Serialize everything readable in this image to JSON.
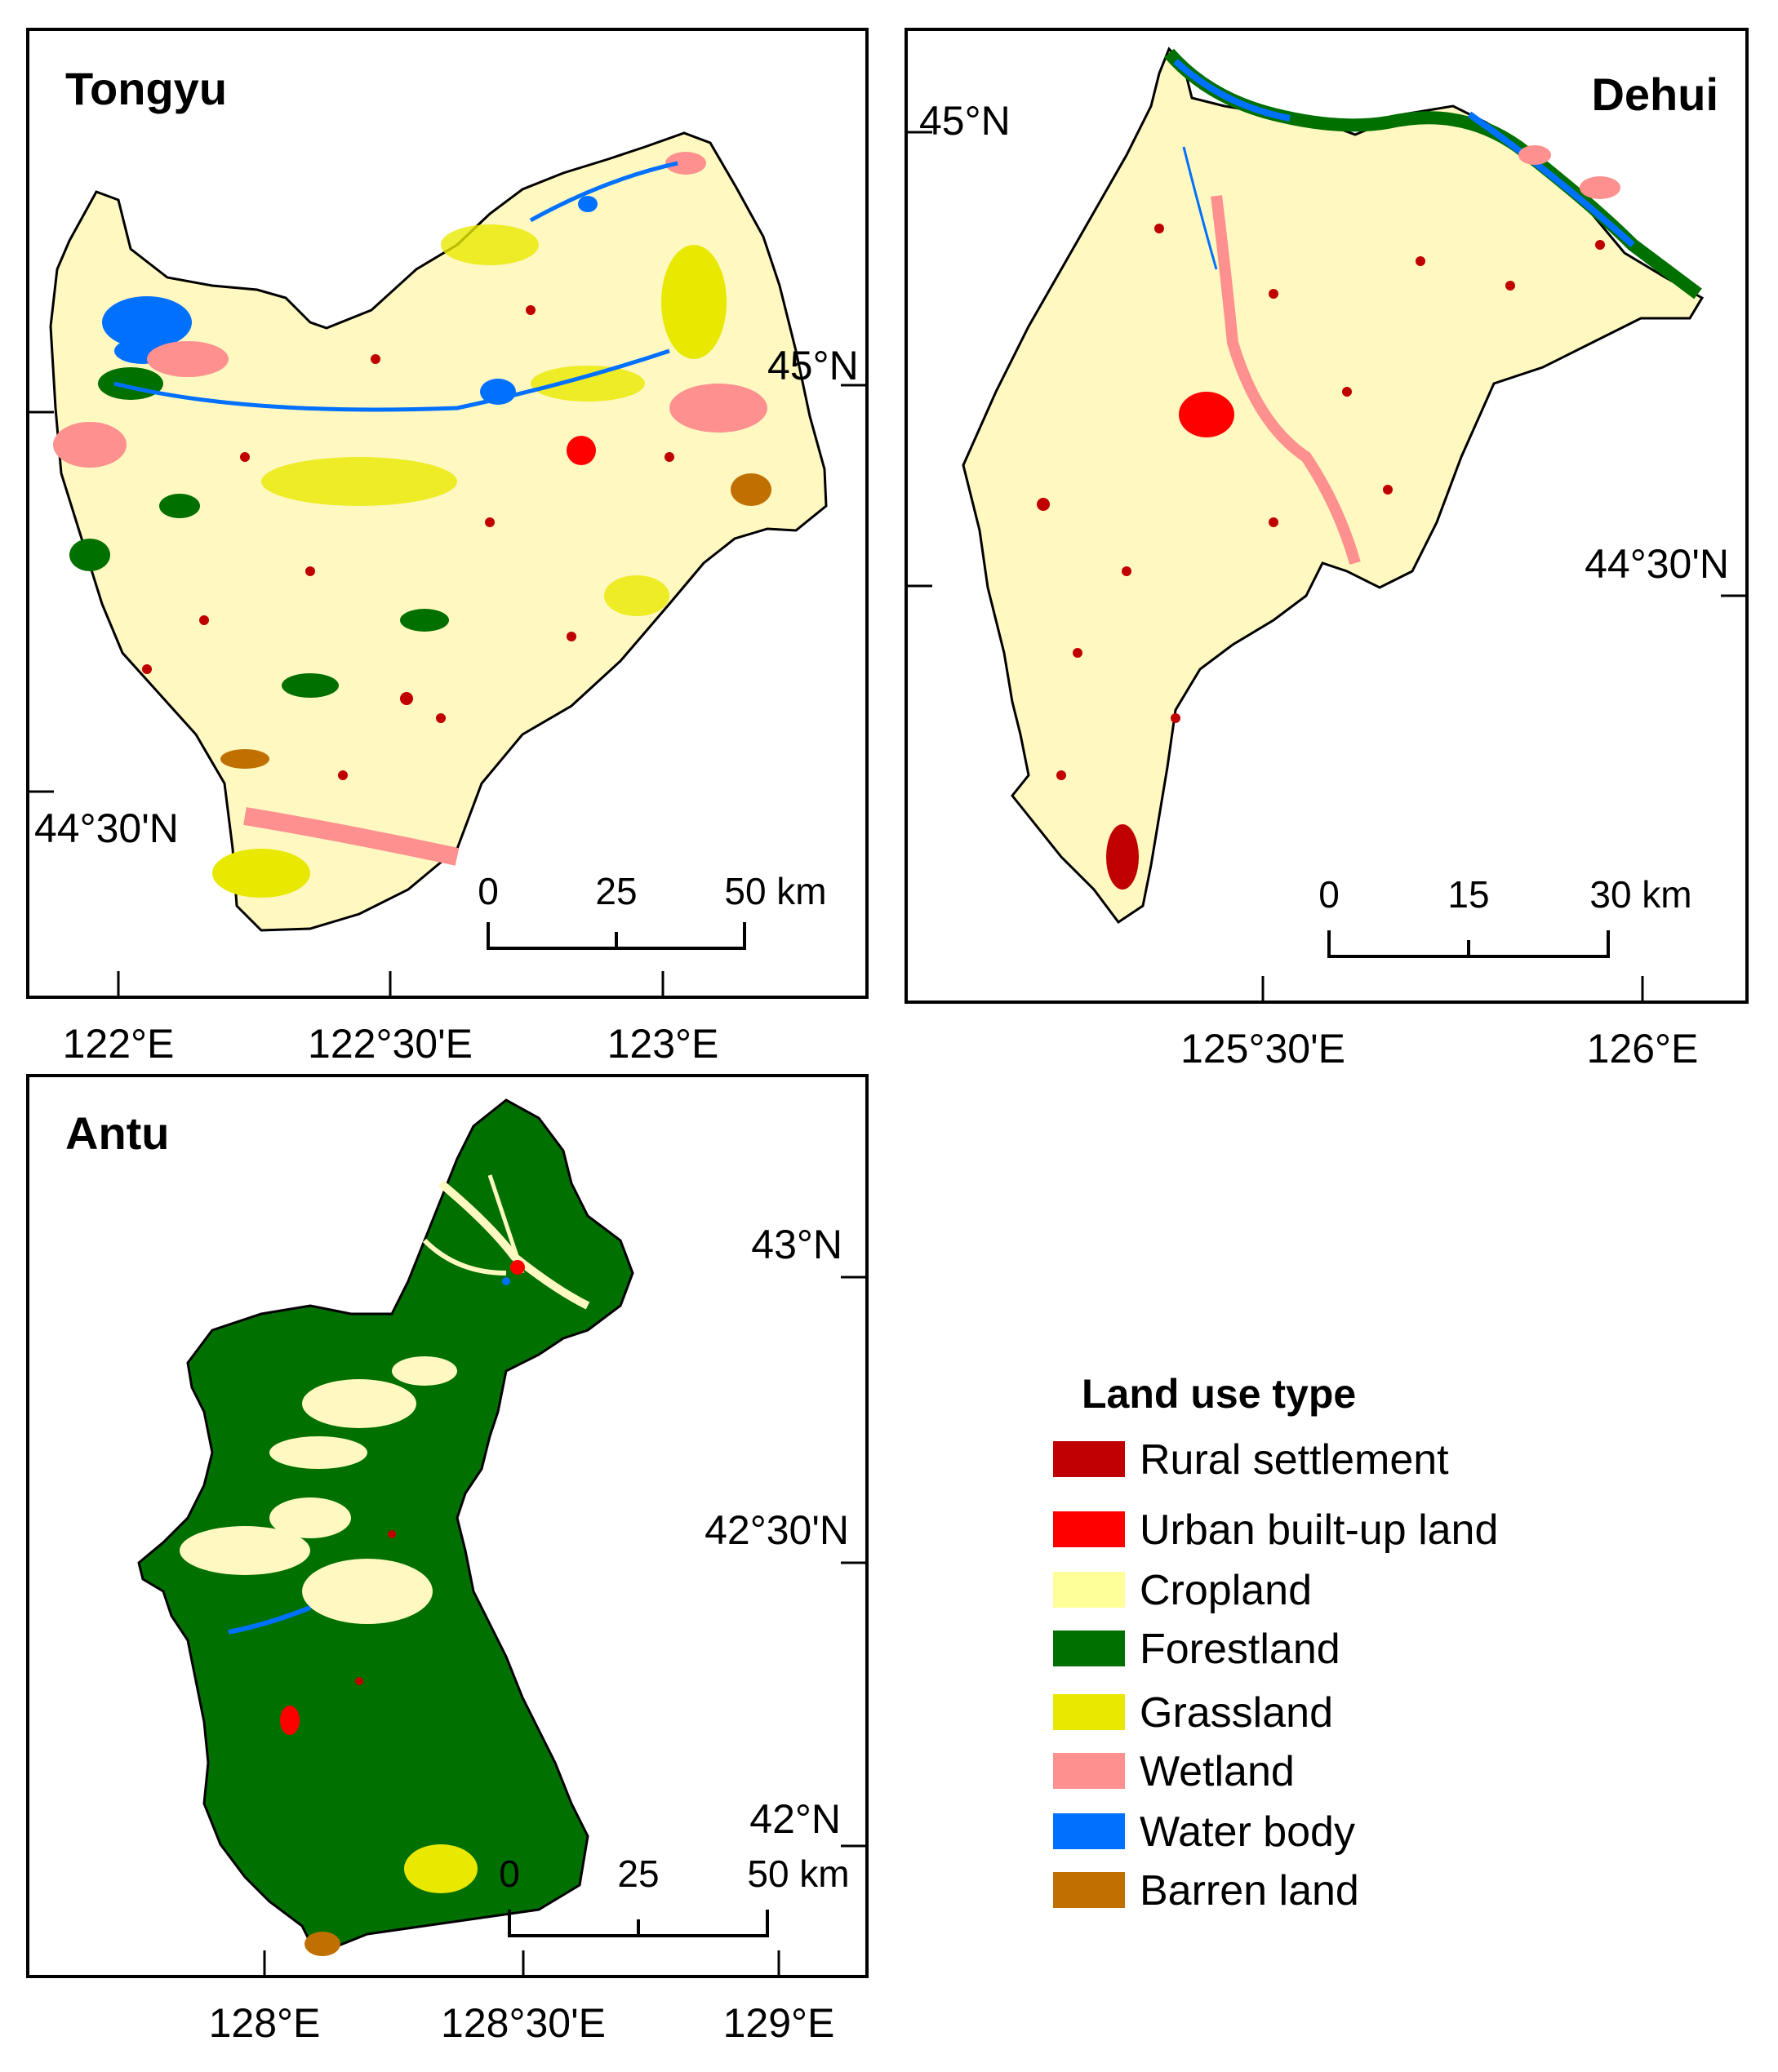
{
  "maps": [
    {
      "name": "Tongyu",
      "lon_labels": [
        "122°E",
        "122°30'E",
        "123°E"
      ],
      "lat_labels": [
        "45°N",
        "44°30'N"
      ],
      "scale": {
        "ticks": [
          "0",
          "25",
          "50 km"
        ]
      }
    },
    {
      "name": "Dehui",
      "lon_labels": [
        "125°30'E",
        "126°E"
      ],
      "lat_labels": [
        "45°N",
        "44°30'N"
      ],
      "scale": {
        "ticks": [
          "0",
          "15",
          "30 km"
        ]
      }
    },
    {
      "name": "Antu",
      "lon_labels": [
        "128°E",
        "128°30'E",
        "129°E"
      ],
      "lat_labels": [
        "43°N",
        "42°30'N",
        "42°N"
      ],
      "scale": {
        "ticks": [
          "0",
          "25",
          "50 km"
        ]
      }
    }
  ],
  "legend": {
    "title": "Land use type",
    "items": [
      {
        "label": "Rural settlement",
        "color": "#c00000"
      },
      {
        "label": "Urban built-up land",
        "color": "#ff0000"
      },
      {
        "label": "Cropland",
        "color": "#ffff99"
      },
      {
        "label": "Forestland",
        "color": "#007000"
      },
      {
        "label": "Grassland",
        "color": "#e8e800"
      },
      {
        "label": "Wetland",
        "color": "#ff9090"
      },
      {
        "label": "Water body",
        "color": "#0070ff"
      },
      {
        "label": "Barren land",
        "color": "#c07000"
      }
    ]
  },
  "colors": {
    "cropland_base": "#fff8c0",
    "forest": "#007000",
    "grass": "#e8e800",
    "wetland": "#ff9090",
    "water": "#0070ff",
    "rural": "#c00000",
    "urban": "#ff0000",
    "barren": "#c07000"
  }
}
